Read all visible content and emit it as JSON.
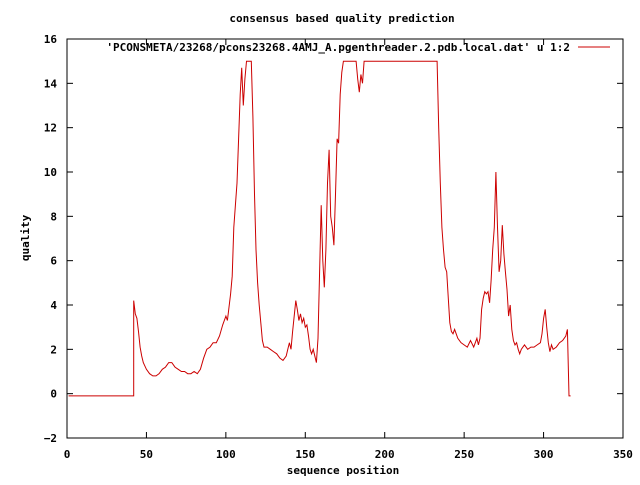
{
  "chart_data": {
    "type": "line",
    "title": "consensus based quality prediction",
    "xlabel": "sequence position",
    "ylabel": "quality",
    "xlim": [
      0,
      350
    ],
    "ylim": [
      -2,
      16
    ],
    "xticks": [
      0,
      50,
      100,
      150,
      200,
      250,
      300,
      350
    ],
    "yticks": [
      -2,
      0,
      2,
      4,
      6,
      8,
      10,
      12,
      14,
      16
    ],
    "legend_position": "top-right",
    "grid": false,
    "series": [
      {
        "name": "'PCONSMETA/23268/pcons23268.4AMJ_A.pgenthreader.2.pdb.local.dat' u 1:2",
        "color": "#cc0000",
        "points": [
          [
            1,
            -0.1
          ],
          [
            42,
            -0.1
          ],
          [
            42,
            4.2
          ],
          [
            43,
            3.6
          ],
          [
            44,
            3.4
          ],
          [
            45,
            2.8
          ],
          [
            46,
            2.1
          ],
          [
            47,
            1.7
          ],
          [
            48,
            1.4
          ],
          [
            50,
            1.1
          ],
          [
            52,
            0.9
          ],
          [
            54,
            0.8
          ],
          [
            56,
            0.8
          ],
          [
            58,
            0.9
          ],
          [
            60,
            1.1
          ],
          [
            62,
            1.2
          ],
          [
            64,
            1.4
          ],
          [
            66,
            1.4
          ],
          [
            68,
            1.2
          ],
          [
            70,
            1.1
          ],
          [
            72,
            1.0
          ],
          [
            74,
            1.0
          ],
          [
            76,
            0.9
          ],
          [
            78,
            0.9
          ],
          [
            80,
            1.0
          ],
          [
            82,
            0.9
          ],
          [
            84,
            1.1
          ],
          [
            86,
            1.6
          ],
          [
            88,
            2.0
          ],
          [
            90,
            2.1
          ],
          [
            92,
            2.3
          ],
          [
            94,
            2.3
          ],
          [
            96,
            2.6
          ],
          [
            98,
            3.1
          ],
          [
            100,
            3.5
          ],
          [
            101,
            3.3
          ],
          [
            102,
            3.9
          ],
          [
            103,
            4.5
          ],
          [
            104,
            5.3
          ],
          [
            105,
            7.5
          ],
          [
            106,
            8.5
          ],
          [
            107,
            9.5
          ],
          [
            108,
            11.5
          ],
          [
            109,
            13.5
          ],
          [
            110,
            14.7
          ],
          [
            111,
            13.0
          ],
          [
            112,
            14.2
          ],
          [
            113,
            15.0
          ],
          [
            116,
            15.0
          ],
          [
            117,
            12.5
          ],
          [
            118,
            9.0
          ],
          [
            119,
            6.5
          ],
          [
            120,
            5.0
          ],
          [
            121,
            4.0
          ],
          [
            122,
            3.2
          ],
          [
            123,
            2.4
          ],
          [
            124,
            2.1
          ],
          [
            126,
            2.1
          ],
          [
            128,
            2.0
          ],
          [
            130,
            1.9
          ],
          [
            132,
            1.8
          ],
          [
            134,
            1.6
          ],
          [
            136,
            1.5
          ],
          [
            138,
            1.7
          ],
          [
            139,
            2.0
          ],
          [
            140,
            2.3
          ],
          [
            141,
            2.0
          ],
          [
            142,
            2.8
          ],
          [
            143,
            3.5
          ],
          [
            144,
            4.2
          ],
          [
            145,
            3.8
          ],
          [
            146,
            3.3
          ],
          [
            147,
            3.6
          ],
          [
            148,
            3.2
          ],
          [
            149,
            3.4
          ],
          [
            150,
            3.0
          ],
          [
            151,
            3.1
          ],
          [
            152,
            2.6
          ],
          [
            153,
            2.0
          ],
          [
            154,
            1.8
          ],
          [
            155,
            2.0
          ],
          [
            156,
            1.7
          ],
          [
            157,
            1.4
          ],
          [
            158,
            2.5
          ],
          [
            159,
            5.5
          ],
          [
            160,
            8.5
          ],
          [
            161,
            6.0
          ],
          [
            162,
            4.8
          ],
          [
            163,
            6.5
          ],
          [
            164,
            9.5
          ],
          [
            165,
            11.0
          ],
          [
            166,
            8.0
          ],
          [
            167,
            7.5
          ],
          [
            168,
            6.7
          ],
          [
            169,
            9.0
          ],
          [
            170,
            11.5
          ],
          [
            171,
            11.3
          ],
          [
            172,
            13.5
          ],
          [
            173,
            14.5
          ],
          [
            174,
            15.0
          ],
          [
            182,
            15.0
          ],
          [
            183,
            14.2
          ],
          [
            184,
            13.6
          ],
          [
            185,
            14.4
          ],
          [
            186,
            14.0
          ],
          [
            187,
            15.0
          ],
          [
            233,
            15.0
          ],
          [
            234,
            12.0
          ],
          [
            235,
            9.5
          ],
          [
            236,
            7.5
          ],
          [
            237,
            6.5
          ],
          [
            238,
            5.7
          ],
          [
            239,
            5.5
          ],
          [
            240,
            4.3
          ],
          [
            241,
            3.2
          ],
          [
            242,
            2.8
          ],
          [
            243,
            2.7
          ],
          [
            244,
            2.9
          ],
          [
            246,
            2.5
          ],
          [
            248,
            2.3
          ],
          [
            250,
            2.2
          ],
          [
            252,
            2.1
          ],
          [
            254,
            2.4
          ],
          [
            256,
            2.1
          ],
          [
            258,
            2.5
          ],
          [
            259,
            2.2
          ],
          [
            260,
            2.5
          ],
          [
            261,
            3.8
          ],
          [
            262,
            4.3
          ],
          [
            263,
            4.6
          ],
          [
            264,
            4.5
          ],
          [
            265,
            4.6
          ],
          [
            266,
            4.1
          ],
          [
            267,
            5.1
          ],
          [
            268,
            6.5
          ],
          [
            269,
            7.5
          ],
          [
            270,
            10.0
          ],
          [
            271,
            7.5
          ],
          [
            272,
            5.5
          ],
          [
            273,
            6.0
          ],
          [
            274,
            7.6
          ],
          [
            275,
            6.3
          ],
          [
            276,
            5.5
          ],
          [
            277,
            4.7
          ],
          [
            278,
            3.5
          ],
          [
            279,
            4.0
          ],
          [
            280,
            2.9
          ],
          [
            281,
            2.4
          ],
          [
            282,
            2.2
          ],
          [
            283,
            2.3
          ],
          [
            284,
            2.0
          ],
          [
            285,
            1.8
          ],
          [
            286,
            2.0
          ],
          [
            287,
            2.1
          ],
          [
            288,
            2.2
          ],
          [
            290,
            2.0
          ],
          [
            292,
            2.1
          ],
          [
            294,
            2.1
          ],
          [
            296,
            2.2
          ],
          [
            298,
            2.3
          ],
          [
            299,
            2.7
          ],
          [
            300,
            3.4
          ],
          [
            301,
            3.8
          ],
          [
            302,
            3.0
          ],
          [
            303,
            2.3
          ],
          [
            304,
            1.9
          ],
          [
            305,
            2.2
          ],
          [
            306,
            2.0
          ],
          [
            308,
            2.1
          ],
          [
            310,
            2.3
          ],
          [
            312,
            2.4
          ],
          [
            314,
            2.6
          ],
          [
            315,
            2.9
          ],
          [
            316,
            -0.1
          ],
          [
            317,
            -0.1
          ]
        ]
      }
    ]
  }
}
